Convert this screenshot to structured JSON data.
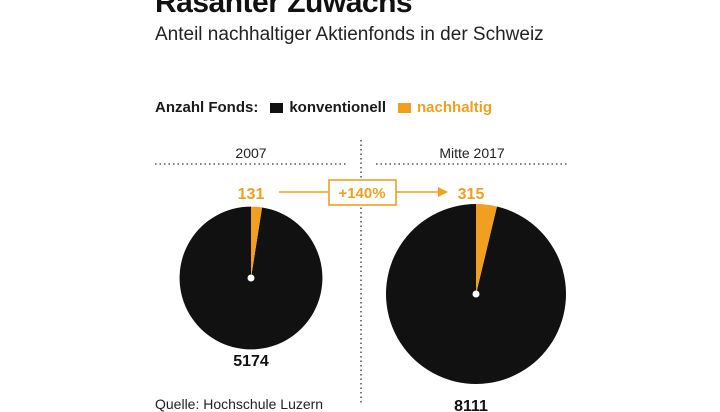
{
  "header": {
    "title": "Rasanter Zuwachs",
    "subtitle": "Anteil nachhaltiger Aktienfonds in der Schweiz"
  },
  "legend": {
    "label": "Anzahl Fonds:",
    "items": [
      {
        "label": "konventionell",
        "color": "#111111"
      },
      {
        "label": "nachhaltig",
        "color": "#f0a01e"
      }
    ]
  },
  "colors": {
    "conventional": "#111111",
    "sustainable": "#f0a01e",
    "accent": "#f0a01e"
  },
  "chart_data": {
    "type": "pie",
    "title": "Rasanter Zuwachs",
    "subtitle": "Anteil nachhaltiger Aktienfonds in der Schweiz",
    "series": [
      {
        "name": "konventionell"
      },
      {
        "name": "nachhaltig"
      }
    ],
    "pies": [
      {
        "period": "2007",
        "conventional": 5174,
        "sustainable": 131,
        "conventional_label": "5174",
        "sustainable_label": "131"
      },
      {
        "period": "Mitte 2017",
        "conventional": 8111,
        "sustainable": 315,
        "conventional_label": "8111",
        "sustainable_label": "315"
      }
    ],
    "growth_label": "+140%"
  },
  "footer": {
    "source": "Quelle: Hochschule Luzern"
  }
}
